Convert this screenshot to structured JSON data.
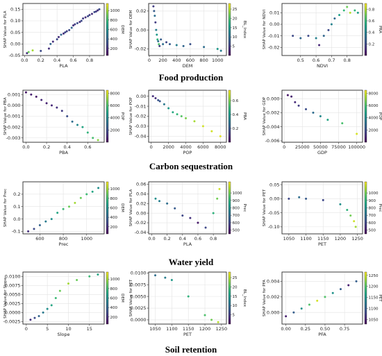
{
  "section_titles": [
    "Food production",
    "Carbon sequestration",
    "Water yield",
    "Soil retention"
  ],
  "chart_data": [
    {
      "type": "scatter",
      "group": "Food production",
      "xlabel": "PLA",
      "ylabel": "SHAP Value for PLA",
      "xlim": [
        -0.02,
        0.98
      ],
      "ylim": [
        -0.05,
        0.175
      ],
      "xticks": [
        "0.0",
        "0.2",
        "0.4",
        "0.6",
        "0.8"
      ],
      "yticks": [
        "-0.05",
        "0.00",
        "0.05",
        "0.10",
        "0.15"
      ],
      "colorbar": {
        "label": "DEM",
        "ticks": [
          "200",
          "400",
          "600",
          "800",
          "1000"
        ],
        "vmin": 50,
        "vmax": 1150,
        "colormap": "viridis"
      },
      "grid": true,
      "points": [
        [
          0.03,
          -0.04,
          200
        ],
        [
          0.05,
          -0.035,
          900
        ],
        [
          0.1,
          -0.028,
          1000
        ],
        [
          0.2,
          -0.03,
          300
        ],
        [
          0.3,
          -0.02,
          200
        ],
        [
          0.32,
          0.0,
          400
        ],
        [
          0.35,
          0.01,
          200
        ],
        [
          0.4,
          0.02,
          300
        ],
        [
          0.42,
          0.03,
          200
        ],
        [
          0.45,
          0.04,
          400
        ],
        [
          0.48,
          0.045,
          200
        ],
        [
          0.5,
          0.05,
          300
        ],
        [
          0.52,
          0.055,
          250
        ],
        [
          0.55,
          0.06,
          300
        ],
        [
          0.58,
          0.07,
          400
        ],
        [
          0.6,
          0.08,
          200
        ],
        [
          0.62,
          0.085,
          250
        ],
        [
          0.65,
          0.09,
          300
        ],
        [
          0.68,
          0.095,
          200
        ],
        [
          0.7,
          0.1,
          300
        ],
        [
          0.72,
          0.11,
          250
        ],
        [
          0.75,
          0.115,
          200
        ],
        [
          0.78,
          0.12,
          300
        ],
        [
          0.8,
          0.125,
          250
        ],
        [
          0.83,
          0.13,
          200
        ],
        [
          0.86,
          0.138,
          300
        ],
        [
          0.88,
          0.14,
          250
        ],
        [
          0.9,
          0.145,
          200
        ],
        [
          0.92,
          0.15,
          300
        ]
      ]
    },
    {
      "type": "scatter",
      "group": "Food production",
      "xlabel": "DEM",
      "ylabel": "SHAP Value for DEM",
      "xlim": [
        -10,
        1130
      ],
      "ylim": [
        -0.027,
        0.028
      ],
      "xticks": [
        "0",
        "200",
        "400",
        "600",
        "800",
        "1000"
      ],
      "yticks": [
        "-0.02",
        "0.00",
        "0.02"
      ],
      "colorbar": {
        "label": "BL_Index",
        "ticks": [
          "5",
          "10",
          "15",
          "20",
          "25"
        ],
        "vmin": 0,
        "vmax": 28,
        "colormap": "viridis"
      },
      "grid": true,
      "points": [
        [
          60,
          0.025,
          5
        ],
        [
          70,
          0.02,
          8
        ],
        [
          80,
          0.015,
          10
        ],
        [
          90,
          0.008,
          5
        ],
        [
          100,
          0.0,
          12
        ],
        [
          110,
          -0.005,
          15
        ],
        [
          120,
          -0.01,
          18
        ],
        [
          130,
          -0.012,
          10
        ],
        [
          140,
          -0.015,
          20
        ],
        [
          150,
          -0.017,
          5
        ],
        [
          170,
          -0.01,
          8
        ],
        [
          200,
          -0.015,
          10
        ],
        [
          250,
          -0.013,
          6
        ],
        [
          300,
          -0.015,
          8
        ],
        [
          400,
          -0.016,
          12
        ],
        [
          500,
          -0.017,
          9
        ],
        [
          600,
          -0.015,
          7
        ],
        [
          800,
          -0.018,
          10
        ],
        [
          1000,
          -0.02,
          15
        ],
        [
          1050,
          -0.022,
          12
        ]
      ]
    },
    {
      "type": "scatter",
      "group": "Food production",
      "xlabel": "NDVI",
      "ylabel": "SHAP Value for NDVI",
      "xlim": [
        0.38,
        0.9
      ],
      "ylim": [
        -0.027,
        0.018
      ],
      "xticks": [
        "0.5",
        "0.6",
        "0.7",
        "0.8"
      ],
      "yticks": [
        "-0.02",
        "-0.01",
        "0.00",
        "0.01"
      ],
      "colorbar": {
        "label": "PRA",
        "ticks": [
          "0.2",
          "0.4",
          "0.6",
          "0.8"
        ],
        "vmin": 0,
        "vmax": 0.9,
        "colormap": "viridis"
      },
      "grid": true,
      "points": [
        [
          0.45,
          -0.01,
          0.2
        ],
        [
          0.5,
          -0.012,
          0.3
        ],
        [
          0.55,
          -0.01,
          0.2
        ],
        [
          0.6,
          -0.012,
          0.4
        ],
        [
          0.62,
          -0.018,
          0.1
        ],
        [
          0.65,
          -0.01,
          0.3
        ],
        [
          0.68,
          -0.005,
          0.2
        ],
        [
          0.7,
          0.0,
          0.4
        ],
        [
          0.72,
          0.005,
          0.3
        ],
        [
          0.75,
          0.008,
          0.5
        ],
        [
          0.78,
          0.012,
          0.6
        ],
        [
          0.8,
          0.015,
          0.7
        ],
        [
          0.82,
          0.01,
          0.8
        ],
        [
          0.85,
          0.012,
          0.6
        ],
        [
          0.87,
          0.01,
          0.5
        ]
      ]
    },
    {
      "type": "scatter",
      "group": "Carbon sequestration",
      "xlabel": "PBA",
      "ylabel": "SHAP Value for PBA",
      "xlim": [
        -0.03,
        0.76
      ],
      "ylim": [
        -0.0034,
        0.0014
      ],
      "xticks": [
        "0.0",
        "0.2",
        "0.4",
        "0.6"
      ],
      "yticks": [
        "-0.003",
        "-0.002",
        "-0.001",
        "0.000",
        "0.001"
      ],
      "colorbar": {
        "label": "POP",
        "ticks": [
          "2000",
          "4000",
          "6000",
          "8000"
        ],
        "vmin": 0,
        "vmax": 8500,
        "colormap": "viridis"
      },
      "grid": true,
      "points": [
        [
          0.0,
          0.0012,
          500
        ],
        [
          0.05,
          0.001,
          700
        ],
        [
          0.1,
          0.0008,
          500
        ],
        [
          0.15,
          0.0005,
          1000
        ],
        [
          0.2,
          0.0002,
          800
        ],
        [
          0.25,
          0.0,
          1000
        ],
        [
          0.3,
          -0.0002,
          1200
        ],
        [
          0.35,
          -0.0005,
          1500
        ],
        [
          0.4,
          -0.001,
          2000
        ],
        [
          0.45,
          -0.0015,
          3000
        ],
        [
          0.5,
          -0.0018,
          4000
        ],
        [
          0.55,
          -0.002,
          5000
        ],
        [
          0.6,
          -0.0025,
          5500
        ],
        [
          0.65,
          -0.003,
          6000
        ],
        [
          0.7,
          -0.0032,
          7000
        ]
      ]
    },
    {
      "type": "scatter",
      "group": "Carbon sequestration",
      "xlabel": "POP",
      "ylabel": "SHAP Value for POP",
      "xlim": [
        -300,
        8700
      ],
      "ylim": [
        -0.046,
        0.006
      ],
      "xticks": [
        "0",
        "2000",
        "4000",
        "6000",
        "8000"
      ],
      "yticks": [
        "-0.04",
        "-0.03",
        "-0.02",
        "-0.01",
        "0.00"
      ],
      "colorbar": {
        "label": "PBA",
        "ticks": [
          "0.2",
          "0.4",
          "0.6"
        ],
        "vmin": 0,
        "vmax": 0.75,
        "colormap": "viridis"
      },
      "grid": true,
      "points": [
        [
          200,
          0.0,
          0.1
        ],
        [
          500,
          -0.002,
          0.1
        ],
        [
          800,
          -0.004,
          0.2
        ],
        [
          1000,
          -0.005,
          0.2
        ],
        [
          1500,
          -0.008,
          0.3
        ],
        [
          2000,
          -0.012,
          0.4
        ],
        [
          2500,
          -0.016,
          0.45
        ],
        [
          3000,
          -0.018,
          0.5
        ],
        [
          3500,
          -0.02,
          0.55
        ],
        [
          4000,
          -0.022,
          0.6
        ],
        [
          5000,
          -0.025,
          0.65
        ],
        [
          6000,
          -0.03,
          0.7
        ],
        [
          7000,
          -0.035,
          0.7
        ],
        [
          8000,
          -0.04,
          0.72
        ]
      ]
    },
    {
      "type": "scatter",
      "group": "Carbon sequestration",
      "xlabel": "GDP",
      "ylabel": "SHAP Value for GDP",
      "xlim": [
        -3000,
        108000
      ],
      "ylim": [
        -0.0062,
        0.0012
      ],
      "xticks": [
        "0",
        "25000",
        "50000",
        "75000",
        "100000"
      ],
      "yticks": [
        "-0.006",
        "-0.004",
        "-0.002",
        "0.000"
      ],
      "colorbar": {
        "label": "POP",
        "ticks": [
          "2000",
          "4000",
          "6000",
          "8000"
        ],
        "vmin": 0,
        "vmax": 8500,
        "colormap": "viridis"
      },
      "grid": true,
      "points": [
        [
          5000,
          0.0005,
          500
        ],
        [
          10000,
          0.0003,
          700
        ],
        [
          15000,
          -0.0005,
          1000
        ],
        [
          20000,
          -0.001,
          1500
        ],
        [
          30000,
          -0.0015,
          2000
        ],
        [
          40000,
          -0.002,
          3000
        ],
        [
          50000,
          -0.0025,
          4000
        ],
        [
          60000,
          -0.003,
          5000
        ],
        [
          80000,
          -0.0035,
          6000
        ],
        [
          100000,
          -0.005,
          8000
        ]
      ]
    },
    {
      "type": "scatter",
      "group": "Water yield",
      "xlabel": "Prec",
      "ylabel": "SHAP Value for Prec",
      "xlim": [
        455,
        1150
      ],
      "ylim": [
        -0.12,
        0.3
      ],
      "xticks": [
        "600",
        "800",
        "1000"
      ],
      "yticks": [
        "-0.1",
        "0.0",
        "0.1",
        "0.2"
      ],
      "colorbar": {
        "label": "DEM",
        "ticks": [
          "200",
          "400",
          "600",
          "800",
          "1000"
        ],
        "vmin": 50,
        "vmax": 1150,
        "colormap": "viridis"
      },
      "grid": true,
      "points": [
        [
          500,
          -0.1,
          200
        ],
        [
          550,
          -0.08,
          300
        ],
        [
          600,
          -0.05,
          400
        ],
        [
          650,
          -0.02,
          500
        ],
        [
          700,
          0.0,
          600
        ],
        [
          750,
          0.05,
          700
        ],
        [
          800,
          0.08,
          800
        ],
        [
          850,
          0.1,
          900
        ],
        [
          900,
          0.13,
          1000
        ],
        [
          950,
          0.17,
          900
        ],
        [
          1000,
          0.2,
          800
        ],
        [
          1050,
          0.22,
          700
        ],
        [
          1100,
          0.25,
          600
        ]
      ]
    },
    {
      "type": "scatter",
      "group": "Water yield",
      "xlabel": "PLA",
      "ylabel": "SHAP Value for PLA",
      "xlim": [
        -0.04,
        0.97
      ],
      "ylim": [
        -0.043,
        0.065
      ],
      "xticks": [
        "0.0",
        "0.2",
        "0.4",
        "0.6",
        "0.8"
      ],
      "yticks": [
        "-0.04",
        "-0.02",
        "0.00",
        "0.02",
        "0.04",
        "0.06"
      ],
      "colorbar": {
        "label": "Prec",
        "ticks": [
          "500",
          "600",
          "700",
          "800",
          "900",
          "1000"
        ],
        "vmin": 450,
        "vmax": 1150,
        "colormap": "viridis"
      },
      "grid": true,
      "points": [
        [
          0.05,
          0.03,
          800
        ],
        [
          0.1,
          0.025,
          750
        ],
        [
          0.2,
          0.02,
          700
        ],
        [
          0.3,
          0.01,
          650
        ],
        [
          0.4,
          -0.005,
          600
        ],
        [
          0.5,
          -0.01,
          550
        ],
        [
          0.6,
          -0.02,
          500
        ],
        [
          0.7,
          -0.03,
          600
        ],
        [
          0.8,
          0.0,
          900
        ],
        [
          0.85,
          0.03,
          1000
        ],
        [
          0.88,
          0.05,
          1100
        ]
      ]
    },
    {
      "type": "scatter",
      "group": "Water yield",
      "xlabel": "PET",
      "ylabel": "SHAP Value for PET",
      "xlim": [
        1030,
        1265
      ],
      "ylim": [
        -0.125,
        0.06
      ],
      "xticks": [
        "1050",
        "1100",
        "1150",
        "1200",
        "1250"
      ],
      "yticks": [
        "-0.10",
        "-0.05",
        "0.00",
        "0.05"
      ],
      "colorbar": {
        "label": "Prec",
        "ticks": [
          "500",
          "600",
          "700",
          "800",
          "900",
          "1000"
        ],
        "vmin": 450,
        "vmax": 1150,
        "colormap": "viridis"
      },
      "grid": true,
      "points": [
        [
          1050,
          0.0,
          600
        ],
        [
          1080,
          0.005,
          700
        ],
        [
          1100,
          0.0,
          650
        ],
        [
          1150,
          -0.005,
          600
        ],
        [
          1200,
          -0.02,
          800
        ],
        [
          1220,
          -0.04,
          900
        ],
        [
          1230,
          -0.06,
          1000
        ],
        [
          1240,
          -0.08,
          1100
        ],
        [
          1245,
          -0.1,
          1050
        ]
      ]
    },
    {
      "type": "scatter",
      "group": "Soil retention",
      "xlabel": "Slope",
      "ylabel": "SHAP Value for Slope",
      "xlim": [
        -0.8,
        18.5
      ],
      "ylim": [
        -0.0032,
        0.0112
      ],
      "xticks": [
        "0",
        "5",
        "10",
        "15"
      ],
      "yticks": [
        "-0.0025",
        "0.0000",
        "0.0025",
        "0.0050",
        "0.0075",
        "0.0100"
      ],
      "colorbar": {
        "label": "DEM",
        "ticks": [
          "200",
          "400",
          "600",
          "800",
          "1000"
        ],
        "vmin": 50,
        "vmax": 1150,
        "colormap": "viridis"
      },
      "grid": true,
      "points": [
        [
          1,
          -0.002,
          200
        ],
        [
          2,
          -0.0015,
          300
        ],
        [
          3,
          -0.001,
          400
        ],
        [
          4,
          0.0,
          500
        ],
        [
          5,
          0.001,
          600
        ],
        [
          6,
          0.002,
          700
        ],
        [
          7,
          0.004,
          800
        ],
        [
          8,
          0.006,
          900
        ],
        [
          10,
          0.008,
          1000
        ],
        [
          12,
          0.009,
          900
        ],
        [
          15,
          0.01,
          800
        ],
        [
          17,
          0.0105,
          700
        ]
      ]
    },
    {
      "type": "scatter",
      "group": "Soil retention",
      "xlabel": "PET",
      "ylabel": "SHAP Value for PET",
      "xlim": [
        1030,
        1265
      ],
      "ylim": [
        -0.0009,
        0.0102
      ],
      "xticks": [
        "1050",
        "1100",
        "1150",
        "1200",
        "1250"
      ],
      "yticks": [
        "0.0000",
        "0.0025",
        "0.0050",
        "0.0075",
        "0.0100"
      ],
      "colorbar": {
        "label": "BL_Index",
        "ticks": [
          "5",
          "10",
          "15",
          "20",
          "25"
        ],
        "vmin": 0,
        "vmax": 28,
        "colormap": "viridis"
      },
      "grid": true,
      "points": [
        [
          1050,
          0.0095,
          10
        ],
        [
          1080,
          0.009,
          12
        ],
        [
          1100,
          0.0085,
          15
        ],
        [
          1150,
          0.005,
          18
        ],
        [
          1200,
          0.001,
          20
        ],
        [
          1220,
          0.0,
          22
        ],
        [
          1240,
          -0.0005,
          25
        ]
      ]
    },
    {
      "type": "scatter",
      "group": "Soil retention",
      "xlabel": "PFA",
      "ylabel": "SHAP Value for PFA",
      "xlim": [
        -0.05,
        0.98
      ],
      "ylim": [
        -0.0015,
        0.0052
      ],
      "xticks": [
        "0.00",
        "0.25",
        "0.50",
        "0.75"
      ],
      "yticks": [
        "0.000",
        "0.002",
        "0.004"
      ],
      "colorbar": {
        "label": "PET",
        "ticks": [
          "1050",
          "1100",
          "1150",
          "1200",
          "1250"
        ],
        "vmin": 1030,
        "vmax": 1265,
        "colormap": "viridis"
      },
      "grid": true,
      "points": [
        [
          0.0,
          -0.0005,
          1050
        ],
        [
          0.1,
          0.0,
          1100
        ],
        [
          0.2,
          0.0005,
          1150
        ],
        [
          0.3,
          0.001,
          1200
        ],
        [
          0.4,
          0.0015,
          1250
        ],
        [
          0.5,
          0.002,
          1200
        ],
        [
          0.6,
          0.0025,
          1150
        ],
        [
          0.7,
          0.003,
          1100
        ],
        [
          0.8,
          0.0035,
          1050
        ],
        [
          0.9,
          0.004,
          1100
        ]
      ]
    }
  ]
}
